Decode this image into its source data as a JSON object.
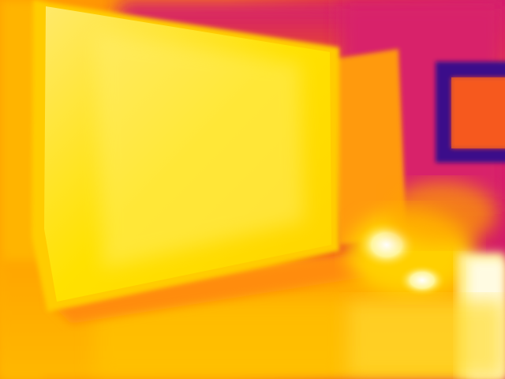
{
  "image": {
    "kind": "thermal-infrared-photo",
    "palette": [
      "#ffffff",
      "#fff28a",
      "#ffe100",
      "#ffc400",
      "#ff9f00",
      "#ff7a10",
      "#e0301f",
      "#d81b60",
      "#c2185b",
      "#5a1aa0",
      "#1a0a6e"
    ]
  }
}
